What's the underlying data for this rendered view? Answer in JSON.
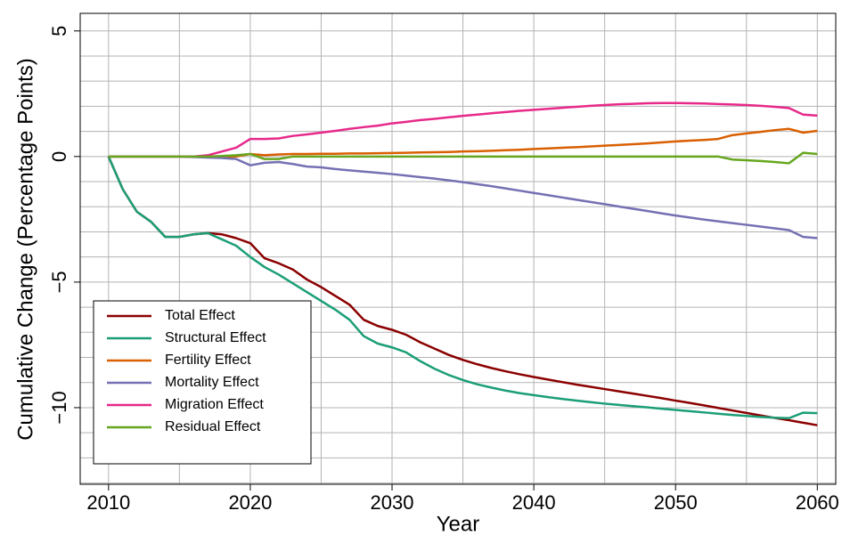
{
  "chart_data": {
    "type": "line",
    "x_label": "Year",
    "y_label": "Cumulative Change (Percentage Points)",
    "x": [
      2010,
      2011,
      2012,
      2013,
      2014,
      2015,
      2016,
      2017,
      2018,
      2019,
      2020,
      2021,
      2022,
      2023,
      2024,
      2025,
      2026,
      2027,
      2028,
      2029,
      2030,
      2031,
      2032,
      2033,
      2034,
      2035,
      2036,
      2037,
      2038,
      2039,
      2040,
      2041,
      2042,
      2043,
      2044,
      2045,
      2046,
      2047,
      2048,
      2049,
      2050,
      2051,
      2052,
      2053,
      2054,
      2055,
      2056,
      2057,
      2058,
      2059,
      2060
    ],
    "series": [
      {
        "name": "Total Effect",
        "color": "#8b0000",
        "values": [
          0,
          -1.3,
          -2.2,
          -2.6,
          -3.2,
          -3.2,
          -3.1,
          -3.05,
          -3.1,
          -3.25,
          -3.45,
          -4.05,
          -4.25,
          -4.5,
          -4.9,
          -5.2,
          -5.55,
          -5.9,
          -6.5,
          -6.75,
          -6.9,
          -7.1,
          -7.4,
          -7.65,
          -7.9,
          -8.1,
          -8.27,
          -8.42,
          -8.55,
          -8.67,
          -8.78,
          -8.88,
          -8.98,
          -9.08,
          -9.17,
          -9.26,
          -9.35,
          -9.44,
          -9.53,
          -9.62,
          -9.72,
          -9.81,
          -9.91,
          -10.01,
          -10.11,
          -10.21,
          -10.31,
          -10.41,
          -10.5,
          -10.6,
          -10.7
        ]
      },
      {
        "name": "Structural Effect",
        "color": "#1b9e77",
        "values": [
          0,
          -1.3,
          -2.2,
          -2.6,
          -3.2,
          -3.2,
          -3.1,
          -3.05,
          -3.3,
          -3.55,
          -4.0,
          -4.4,
          -4.7,
          -5.05,
          -5.4,
          -5.75,
          -6.1,
          -6.5,
          -7.15,
          -7.45,
          -7.6,
          -7.8,
          -8.15,
          -8.45,
          -8.7,
          -8.9,
          -9.07,
          -9.2,
          -9.32,
          -9.42,
          -9.5,
          -9.58,
          -9.65,
          -9.72,
          -9.78,
          -9.84,
          -9.89,
          -9.94,
          -9.99,
          -10.04,
          -10.09,
          -10.14,
          -10.19,
          -10.24,
          -10.29,
          -10.33,
          -10.37,
          -10.4,
          -10.42,
          -10.2,
          -10.22
        ]
      },
      {
        "name": "Fertility Effect",
        "color": "#d95f02",
        "values": [
          0,
          0,
          0,
          0,
          0,
          0,
          0,
          0,
          0,
          0,
          0.1,
          0.05,
          0.08,
          0.1,
          0.1,
          0.11,
          0.11,
          0.12,
          0.12,
          0.13,
          0.14,
          0.15,
          0.16,
          0.17,
          0.18,
          0.2,
          0.21,
          0.23,
          0.25,
          0.27,
          0.3,
          0.32,
          0.35,
          0.37,
          0.4,
          0.43,
          0.46,
          0.49,
          0.52,
          0.56,
          0.6,
          0.63,
          0.66,
          0.7,
          0.85,
          0.92,
          0.98,
          1.05,
          1.1,
          0.95,
          1.02
        ]
      },
      {
        "name": "Mortality Effect",
        "color": "#7570b3",
        "values": [
          0,
          0,
          0,
          0,
          0,
          0,
          -0.02,
          -0.04,
          -0.06,
          -0.1,
          -0.35,
          -0.25,
          -0.22,
          -0.3,
          -0.4,
          -0.43,
          -0.5,
          -0.55,
          -0.6,
          -0.65,
          -0.7,
          -0.76,
          -0.82,
          -0.88,
          -0.95,
          -1.02,
          -1.1,
          -1.18,
          -1.27,
          -1.36,
          -1.45,
          -1.54,
          -1.63,
          -1.72,
          -1.81,
          -1.9,
          -1.99,
          -2.08,
          -2.17,
          -2.26,
          -2.35,
          -2.43,
          -2.51,
          -2.58,
          -2.65,
          -2.72,
          -2.79,
          -2.86,
          -2.93,
          -3.2,
          -3.25
        ]
      },
      {
        "name": "Migration Effect",
        "color": "#e7298a",
        "values": [
          0,
          0,
          0,
          0,
          0,
          0,
          0,
          0.05,
          0.2,
          0.35,
          0.7,
          0.7,
          0.72,
          0.82,
          0.88,
          0.95,
          1.02,
          1.1,
          1.17,
          1.23,
          1.32,
          1.38,
          1.45,
          1.5,
          1.56,
          1.62,
          1.67,
          1.72,
          1.77,
          1.82,
          1.86,
          1.9,
          1.94,
          1.98,
          2.02,
          2.05,
          2.08,
          2.1,
          2.12,
          2.13,
          2.13,
          2.12,
          2.11,
          2.09,
          2.07,
          2.05,
          2.02,
          1.98,
          1.93,
          1.67,
          1.63
        ]
      },
      {
        "name": "Residual Effect",
        "color": "#66a61e",
        "values": [
          0,
          0,
          0,
          0,
          0,
          0,
          0,
          0,
          0.02,
          0.05,
          0.1,
          -0.1,
          -0.1,
          0,
          0,
          0,
          0,
          0,
          0,
          0,
          0,
          0,
          0,
          0,
          0,
          0,
          0,
          0,
          0,
          0,
          0,
          0,
          0,
          0,
          0,
          0,
          0,
          0,
          0,
          0,
          0,
          0,
          0,
          0,
          -0.12,
          -0.15,
          -0.18,
          -0.22,
          -0.27,
          0.15,
          0.1
        ]
      }
    ],
    "xlim": [
      2008,
      2061.3
    ],
    "ylim": [
      -13.05,
      5.7
    ],
    "xticks": [
      2010,
      2020,
      2030,
      2040,
      2050,
      2060
    ],
    "yticks": [
      5,
      0,
      {
        "value": -5,
        "label": "−5"
      },
      {
        "value": -10,
        "label": "−10"
      }
    ],
    "grid_x": [
      2010,
      2015,
      2020,
      2025,
      2030,
      2035,
      2040,
      2045,
      2050,
      2055,
      2060
    ],
    "grid_y": [
      5,
      4,
      3,
      2,
      1,
      0,
      -1,
      -2,
      -3,
      -4,
      -5,
      -6,
      -7,
      -8,
      -9,
      -10,
      -11,
      -12,
      -13
    ],
    "legend": "bottomleft"
  }
}
